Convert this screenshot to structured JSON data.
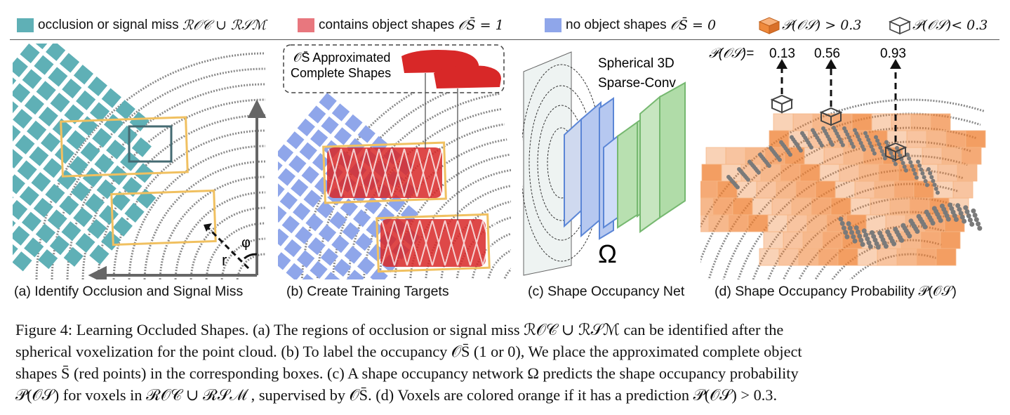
{
  "legend": {
    "items": [
      {
        "label": "occlusion or signal miss",
        "math": "ℛ𝒪𝒞 ∪ ℛ𝒮ℳ",
        "color": "#5fb0b6"
      },
      {
        "label": "contains object shapes",
        "math": "𝒪S̄ = 1",
        "color": "#e8777e"
      },
      {
        "label": "no object shapes",
        "math": "𝒪S̄ = 0",
        "color": "#8fa6ea"
      },
      {
        "label": "",
        "math": "𝒫(𝒪𝒮) > 0.3",
        "color": "#f08a3c",
        "icon": "orange-cube-icon"
      },
      {
        "label": "",
        "math": "𝒫(𝒪𝒮)< 0.3",
        "color": "#444444",
        "icon": "wire-cube-icon"
      }
    ]
  },
  "panels": {
    "a": {
      "caption": "(a) Identify Occlusion and Signal Miss",
      "r_label": "r",
      "phi_label": "φ"
    },
    "b": {
      "caption": "(b) Create Training Targets",
      "callout": "𝒪S̄ Approximated",
      "callout2": "Complete Shapes"
    },
    "c": {
      "caption": "(c) Shape Occupancy Net",
      "title1": "Spherical 3D",
      "title2": "Sparse-Conv",
      "omega": "Ω"
    },
    "d": {
      "caption": "(d) Shape Occupancy Probability 𝒫(𝒪𝒮)",
      "prob_prefix": "𝒫(𝒪𝒮)=",
      "probs": [
        "0.13",
        "0.56",
        "0.93"
      ]
    }
  },
  "figure_caption": {
    "line1": "Figure 4: Learning Occluded Shapes. (a) The regions of occlusion or signal miss ℛ𝒪𝒞 ∪ ℛ𝒮ℳ can be identified after the",
    "line2": "spherical voxelization for the point cloud. (b) To label the occupancy 𝒪S̄ (1 or 0), We place the approximated complete object",
    "line3": "shapes S̄ (red points) in the corresponding boxes. (c) A shape occupancy network Ω predicts the shape occupancy probability",
    "line4": "𝒫(𝒪𝒮) for voxels in ℛ𝒪𝒞 ∪ ℛ𝒮ℳ , supervised by 𝒪S̄. (d) Voxels are colored orange if it has a prediction 𝒫(𝒪𝒮) > 0.3."
  }
}
